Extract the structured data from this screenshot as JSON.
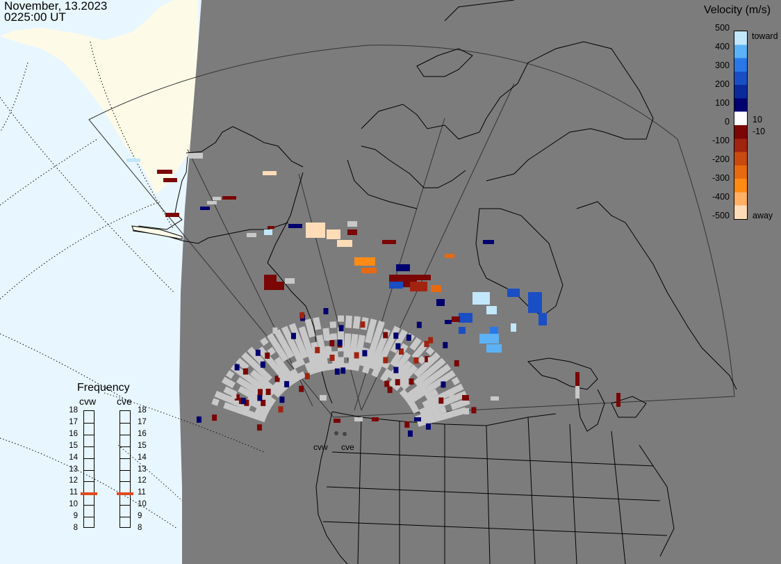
{
  "header": {
    "date": "November, 13.2023",
    "time": "0225:00 UT"
  },
  "colorbar": {
    "title": "Velocity (m/s)",
    "ticks": [
      "500",
      "400",
      "300",
      "200",
      "100",
      "0",
      "-100",
      "-200",
      "-300",
      "-400",
      "-500"
    ],
    "small_labels": [
      "10",
      "-10"
    ],
    "toward_label": "toward",
    "away_label": "away",
    "colors": [
      "#ffdcb8",
      "#ffb065",
      "#ff8a14",
      "#e86a10",
      "#c84a10",
      "#a02410",
      "#7a0606",
      "#ffffff",
      "#00006e",
      "#0a2a9c",
      "#1a4ec4",
      "#2a78e8",
      "#5cb2f4",
      "#c2e6fa"
    ]
  },
  "frequency": {
    "title": "Frequency",
    "radars": [
      {
        "name": "cvw",
        "value": 10.9
      },
      {
        "name": "cve",
        "value": 10.9
      }
    ],
    "scale": [
      "18",
      "17",
      "16",
      "15",
      "14",
      "13",
      "12",
      "11",
      "10",
      "9",
      "8"
    ],
    "marker_color": "#e04a1c"
  },
  "radars": [
    {
      "name": "cvw"
    },
    {
      "name": "cve"
    }
  ],
  "map_colors": {
    "night": "#7c7c7c",
    "day_ocean": "#e8f6ff",
    "day_land": "#fdfbe8",
    "no_data_gray": "#c8c8c8"
  },
  "velocity_cells": [
    {
      "c": "#c8c8c8",
      "n": 120
    },
    {
      "c": "#00006e",
      "n": 30
    },
    {
      "c": "#7a0606",
      "n": 28
    },
    {
      "c": "#a02410",
      "n": 8
    },
    {
      "c": "#ffdcb8",
      "n": 6
    },
    {
      "c": "#ff8a14",
      "n": 5
    },
    {
      "c": "#5cb2f4",
      "n": 6
    },
    {
      "c": "#c2e6fa",
      "n": 5
    },
    {
      "c": "#1a4ec4",
      "n": 8
    }
  ]
}
